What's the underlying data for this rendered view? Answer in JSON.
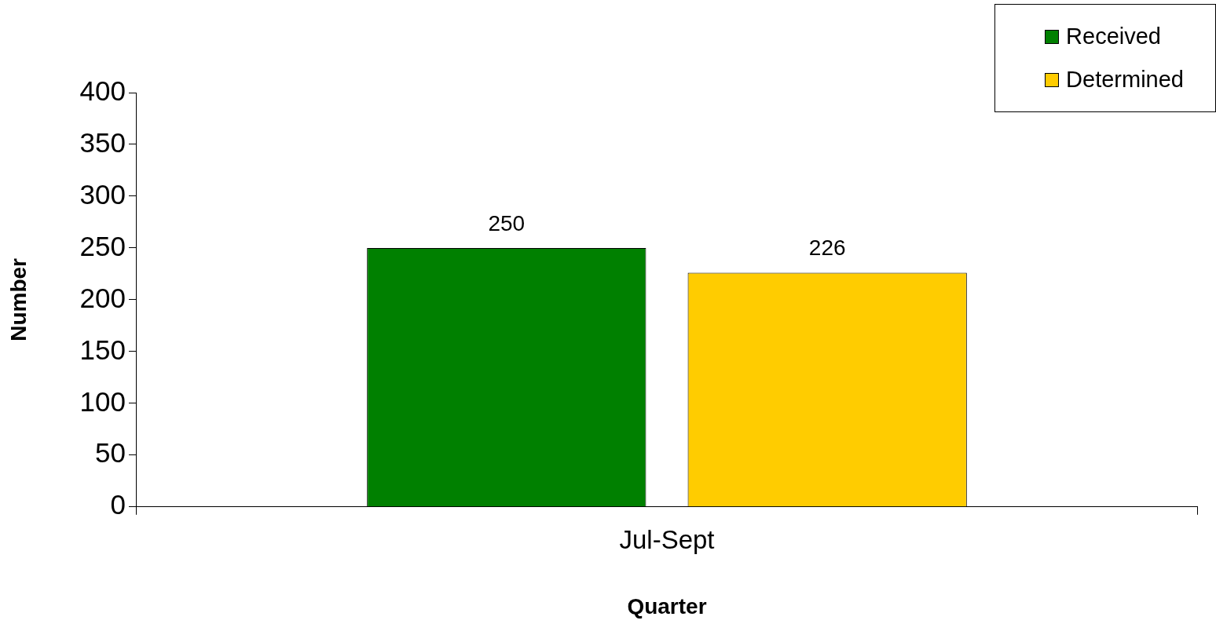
{
  "chart_data": {
    "type": "bar",
    "xlabel": "Quarter",
    "ylabel": "Number",
    "categories": [
      "Jul-Sept"
    ],
    "series": [
      {
        "name": "Received",
        "color": "#008000",
        "values": [
          250
        ]
      },
      {
        "name": "Determined",
        "color": "#ffcc00",
        "values": [
          226
        ]
      }
    ],
    "ylim": [
      0,
      400
    ],
    "yticks": [
      0,
      50,
      100,
      150,
      200,
      250,
      300,
      350,
      400
    ],
    "grid": false,
    "legend": "top right",
    "data_labels": true
  }
}
